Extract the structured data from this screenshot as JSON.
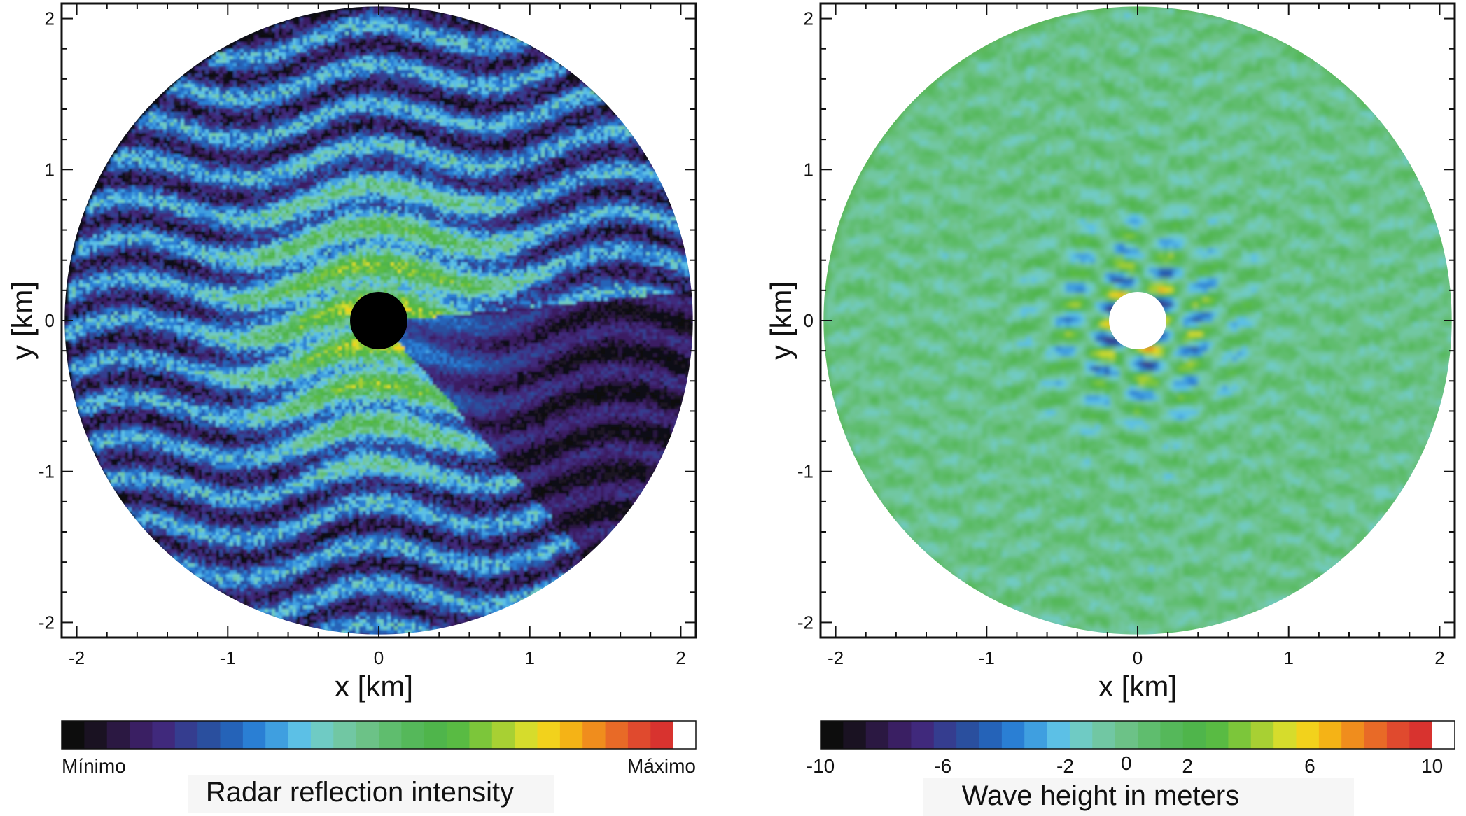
{
  "chart_data": [
    {
      "type": "heatmap",
      "title": "",
      "xlabel": "x [km]",
      "ylabel": "y [km]",
      "xlim": [
        -2.1,
        2.1
      ],
      "ylim": [
        -2.1,
        2.1
      ],
      "xticks": [
        -2,
        -1,
        0,
        1,
        2
      ],
      "yticks": [
        -2,
        -1,
        0,
        1,
        2
      ],
      "radar_radius_km": 2.08,
      "blind_center_radius_km": 0.19,
      "blind_center_color": "#000000",
      "colorbar": {
        "title": "Radar reflection intensity",
        "min_label": "Mínimo",
        "max_label": "Máximo"
      },
      "description_values": {
        "background": "#0b0b14"
      }
    },
    {
      "type": "heatmap",
      "title": "",
      "xlabel": "x [km]",
      "ylabel": "y [km]",
      "xlim": [
        -2.1,
        2.1
      ],
      "ylim": [
        -2.1,
        2.1
      ],
      "xticks": [
        -2,
        -1,
        0,
        1,
        2
      ],
      "yticks": [
        -2,
        -1,
        0,
        1,
        2
      ],
      "radar_radius_km": 2.08,
      "blind_center_radius_km": 0.19,
      "blind_center_color": "#ffffff",
      "colorbar": {
        "title": "Wave height in meters",
        "ticks": [
          -10,
          -6,
          -2,
          0,
          2,
          6,
          10
        ],
        "range": [
          -10,
          10
        ]
      },
      "description_values": {
        "background": "#5cb85c"
      }
    }
  ],
  "colormap": [
    "#0d0d0d",
    "#1a1222",
    "#2b1842",
    "#3a1f63",
    "#40297c",
    "#353d8f",
    "#2a4f9e",
    "#2563b8",
    "#2a7fd4",
    "#3f9fe0",
    "#5cc0e6",
    "#6fcbc4",
    "#71c7a3",
    "#6cc287",
    "#5fbd6e",
    "#55b85a",
    "#4fb54b",
    "#59bb43",
    "#7cc63a",
    "#a8d033",
    "#d6dc2c",
    "#f2d21c",
    "#f5b316",
    "#f08d1d",
    "#e86a27",
    "#e04a2e",
    "#d8332f",
    "#ffffff"
  ]
}
